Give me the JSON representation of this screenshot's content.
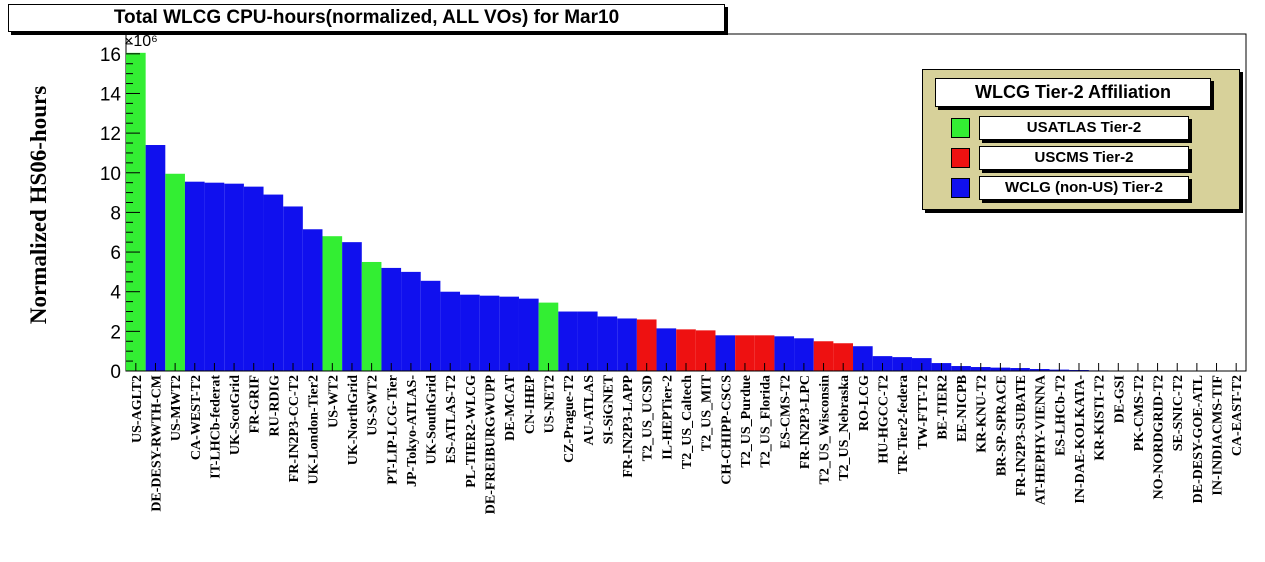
{
  "chart_data": {
    "type": "bar",
    "title": "Total WLCG CPU-hours(normalized, ALL VOs) for Mar10",
    "ylabel": "Normalized HS06-hours",
    "y_exponent": "×10⁶",
    "ylim": [
      0,
      17
    ],
    "yticks": [
      "0",
      "2",
      "4",
      "6",
      "8",
      "10",
      "12",
      "14",
      "16"
    ],
    "categories": [
      "US-AGLT2",
      "DE-DESY-RWTH-CM",
      "US-MWT2",
      "CA-WEST-T2",
      "IT-LHCb-federat",
      "UK-ScotGrid",
      "FR-GRIF",
      "RU-RDIG",
      "FR-IN2P3-CC-T2",
      "UK-London-Tier2",
      "US-WT2",
      "UK-NorthGrid",
      "US-SWT2",
      "PT-LIP-LCG-Tier",
      "JP-Tokyo-ATLAS-",
      "UK-SouthGrid",
      "ES-ATLAS-T2",
      "PL-TIER2-WLCG",
      "DE-FREIBURGWUPP",
      "DE-MCAT",
      "CN-IHEP",
      "US-NET2",
      "CZ-Prague-T2",
      "AU-ATLAS",
      "SI-SiGNET",
      "FR-IN2P3-LAPP",
      "T2_US_UCSD",
      "IL-HEPTier-2",
      "T2_US_Caltech",
      "T2_US_MIT",
      "CH-CHIPP-CSCS",
      "T2_US_Purdue",
      "T2_US_Florida",
      "ES-CMS-T2",
      "FR-IN2P3-LPC",
      "T2_US_Wisconsin",
      "T2_US_Nebraska",
      "RO-LCG",
      "HU-HGCC-T2",
      "TR-Tier2-federa",
      "TW-FTT-T2",
      "BE-TIER2",
      "EE-NICPB",
      "KR-KNU-T2",
      "BR-SP-SPRACE",
      "FR-IN2P3-SUBATE",
      "AT-HEPHY-VIENNA",
      "ES-LHCb-T2",
      "IN-DAE-KOLKATA-",
      "KR-KISTI-T2",
      "DE-GSI",
      "PK-CMS-T2",
      "NO-NORDGRID-T2",
      "SE-SNIC-T2",
      "DE-DESY-GOE-ATL",
      "IN-INDIACMS-TIF",
      "CA-EAST-T2"
    ],
    "values": [
      16.05,
      11.4,
      9.95,
      9.55,
      9.5,
      9.45,
      9.3,
      8.9,
      8.3,
      7.15,
      6.8,
      6.5,
      5.5,
      5.2,
      5.0,
      4.55,
      4.0,
      3.85,
      3.8,
      3.75,
      3.65,
      3.45,
      3.0,
      3.0,
      2.75,
      2.65,
      2.6,
      2.15,
      2.1,
      2.05,
      1.8,
      1.8,
      1.8,
      1.75,
      1.65,
      1.5,
      1.4,
      1.25,
      0.75,
      0.7,
      0.65,
      0.4,
      0.25,
      0.2,
      0.17,
      0.15,
      0.1,
      0.07,
      0.05,
      0.03,
      0.02,
      0.02,
      0.01,
      0.01,
      0.0,
      0.0,
      0.0
    ],
    "affiliation": [
      "ATLAS",
      "WLCG",
      "ATLAS",
      "WLCG",
      "WLCG",
      "WLCG",
      "WLCG",
      "WLCG",
      "WLCG",
      "WLCG",
      "ATLAS",
      "WLCG",
      "ATLAS",
      "WLCG",
      "WLCG",
      "WLCG",
      "WLCG",
      "WLCG",
      "WLCG",
      "WLCG",
      "WLCG",
      "ATLAS",
      "WLCG",
      "WLCG",
      "WLCG",
      "WLCG",
      "CMS",
      "WLCG",
      "CMS",
      "CMS",
      "WLCG",
      "CMS",
      "CMS",
      "WLCG",
      "WLCG",
      "CMS",
      "CMS",
      "WLCG",
      "WLCG",
      "WLCG",
      "WLCG",
      "WLCG",
      "WLCG",
      "WLCG",
      "WLCG",
      "WLCG",
      "WLCG",
      "WLCG",
      "WLCG",
      "WLCG",
      "WLCG",
      "WLCG",
      "WLCG",
      "WLCG",
      "WLCG",
      "WLCG",
      "WLCG"
    ],
    "colors": {
      "ATLAS": "#33ee33",
      "CMS": "#ee1111",
      "WLCG": "#1010ee"
    },
    "legend": {
      "title": "WLCG Tier-2 Affiliation",
      "position": "top-right",
      "entries": [
        {
          "key": "ATLAS",
          "label": "USATLAS Tier-2"
        },
        {
          "key": "CMS",
          "label": "USCMS Tier-2"
        },
        {
          "key": "WLCG",
          "label": "WCLG (non-US) Tier-2"
        }
      ]
    },
    "grid": false
  }
}
